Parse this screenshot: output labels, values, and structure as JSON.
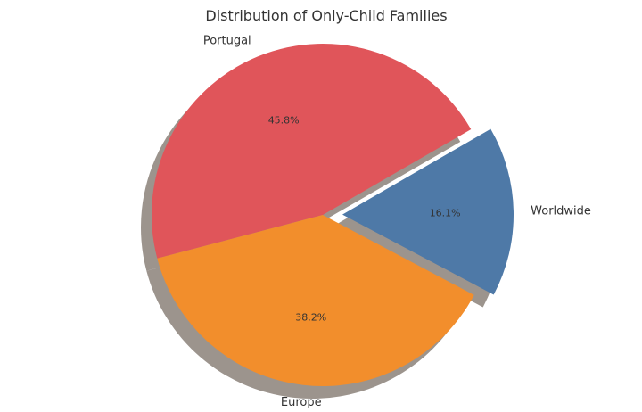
{
  "chart_data": {
    "type": "pie",
    "title": "Distribution of Only-Child Families",
    "categories": [
      "Portugal",
      "Europe",
      "Worldwide"
    ],
    "values": [
      45.8,
      38.2,
      16.1
    ],
    "value_labels": [
      "45.8%",
      "38.2%",
      "16.1%"
    ],
    "colors": [
      "#e0555a",
      "#f28e2c",
      "#4e79a7"
    ],
    "exploded": [
      false,
      false,
      true
    ],
    "shadow": true,
    "legend": "none"
  }
}
